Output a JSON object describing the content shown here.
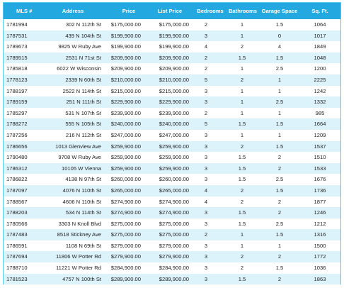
{
  "table": {
    "headers": [
      "MLS #",
      "Address",
      "Price",
      "List Price",
      "Bedrooms",
      "Bathrooms",
      "Garage Space",
      "Sq. Ft."
    ],
    "rows": [
      [
        "1781994",
        "302 N 112th St",
        "$175,000.00",
        "$175,000.00",
        "2",
        "1",
        "1.5",
        "1064"
      ],
      [
        "1787531",
        "439 N 104th St",
        "$199,900.00",
        "$199,900.00",
        "3",
        "1",
        "0",
        "1017"
      ],
      [
        "1789673",
        "9825 W Ruby Ave",
        "$199,900.00",
        "$199,900.00",
        "4",
        "2",
        "4",
        "1849"
      ],
      [
        "1789515",
        "2531 N 71st St",
        "$209,900.00",
        "$209,900.00",
        "2",
        "1.5",
        "1.5",
        "1048"
      ],
      [
        "1785818",
        "6022 W Wisconsin",
        "$209,900.00",
        "$209,900.00",
        "2",
        "1",
        "2.5",
        "1200"
      ],
      [
        "1778123",
        "2339 N 60th St",
        "$210,000.00",
        "$210,000.00",
        "5",
        "2",
        "1",
        "2225"
      ],
      [
        "1788197",
        "2522 N 114th St",
        "$215,000.00",
        "$215,000.00",
        "3",
        "1",
        "1",
        "1242"
      ],
      [
        "1789159",
        "251 N 111th St",
        "$229,900.00",
        "$229,900.00",
        "3",
        "1",
        "2.5",
        "1332"
      ],
      [
        "1785297",
        "531 N 107th St",
        "$239,900.00",
        "$239,900.00",
        "2",
        "1",
        "1",
        "985"
      ],
      [
        "1788272",
        "555 N 105th St",
        "$240,000.00",
        "$240,000.00",
        "5",
        "1.5",
        "1.5",
        "1664"
      ],
      [
        "1787256",
        "216 N 112th St",
        "$247,000.00",
        "$247,000.00",
        "3",
        "1",
        "1",
        "1209"
      ],
      [
        "1786656",
        "1013 Glenview Ave",
        "$259,900.00",
        "$259,900.00",
        "3",
        "2",
        "1.5",
        "1537"
      ],
      [
        "1790480",
        "9708 W Ruby Ave",
        "$259,900.00",
        "$259,900.00",
        "3",
        "1.5",
        "2",
        "1510"
      ],
      [
        "1786312",
        "10105 W Vienna",
        "$259,900.00",
        "$259,900.00",
        "3",
        "1.5",
        "2",
        "1533"
      ],
      [
        "1786822",
        "4138 N 97th St",
        "$260,000.00",
        "$260,000.00",
        "3",
        "1.5",
        "2.5",
        "1676"
      ],
      [
        "1787097",
        "4076 N 110th St",
        "$265,000.00",
        "$265,000.00",
        "4",
        "2",
        "1.5",
        "1736"
      ],
      [
        "1788567",
        "4606 N 110th St",
        "$274,900.00",
        "$274,900.00",
        "4",
        "2",
        "2",
        "1877"
      ],
      [
        "1788203",
        "534 N 114th St",
        "$274,900.00",
        "$274,900.00",
        "3",
        "1.5",
        "2",
        "1246"
      ],
      [
        "1780566",
        "3303 N Knoll Blvd",
        "$275,000.00",
        "$275,000.00",
        "3",
        "1.5",
        "2.5",
        "1212"
      ],
      [
        "1787483",
        "8518 Stickney Ave",
        "$275,000.00",
        "$275,000.00",
        "2",
        "1",
        "1.5",
        "1316"
      ],
      [
        "1786591",
        "1108 N 69th St",
        "$279,000.00",
        "$279,000.00",
        "3",
        "1",
        "1",
        "1500"
      ],
      [
        "1787694",
        "11806 W Potter Rd",
        "$279,900.00",
        "$279,900.00",
        "3",
        "2",
        "2",
        "1772"
      ],
      [
        "1788710",
        "11221 W Potter Rd",
        "$284,900.00",
        "$284,900.00",
        "3",
        "2",
        "1.5",
        "1036"
      ],
      [
        "1781523",
        "4757 N 100th St",
        "$289,900.00",
        "$289,900.00",
        "3",
        "1.5",
        "2",
        "1863"
      ]
    ]
  }
}
